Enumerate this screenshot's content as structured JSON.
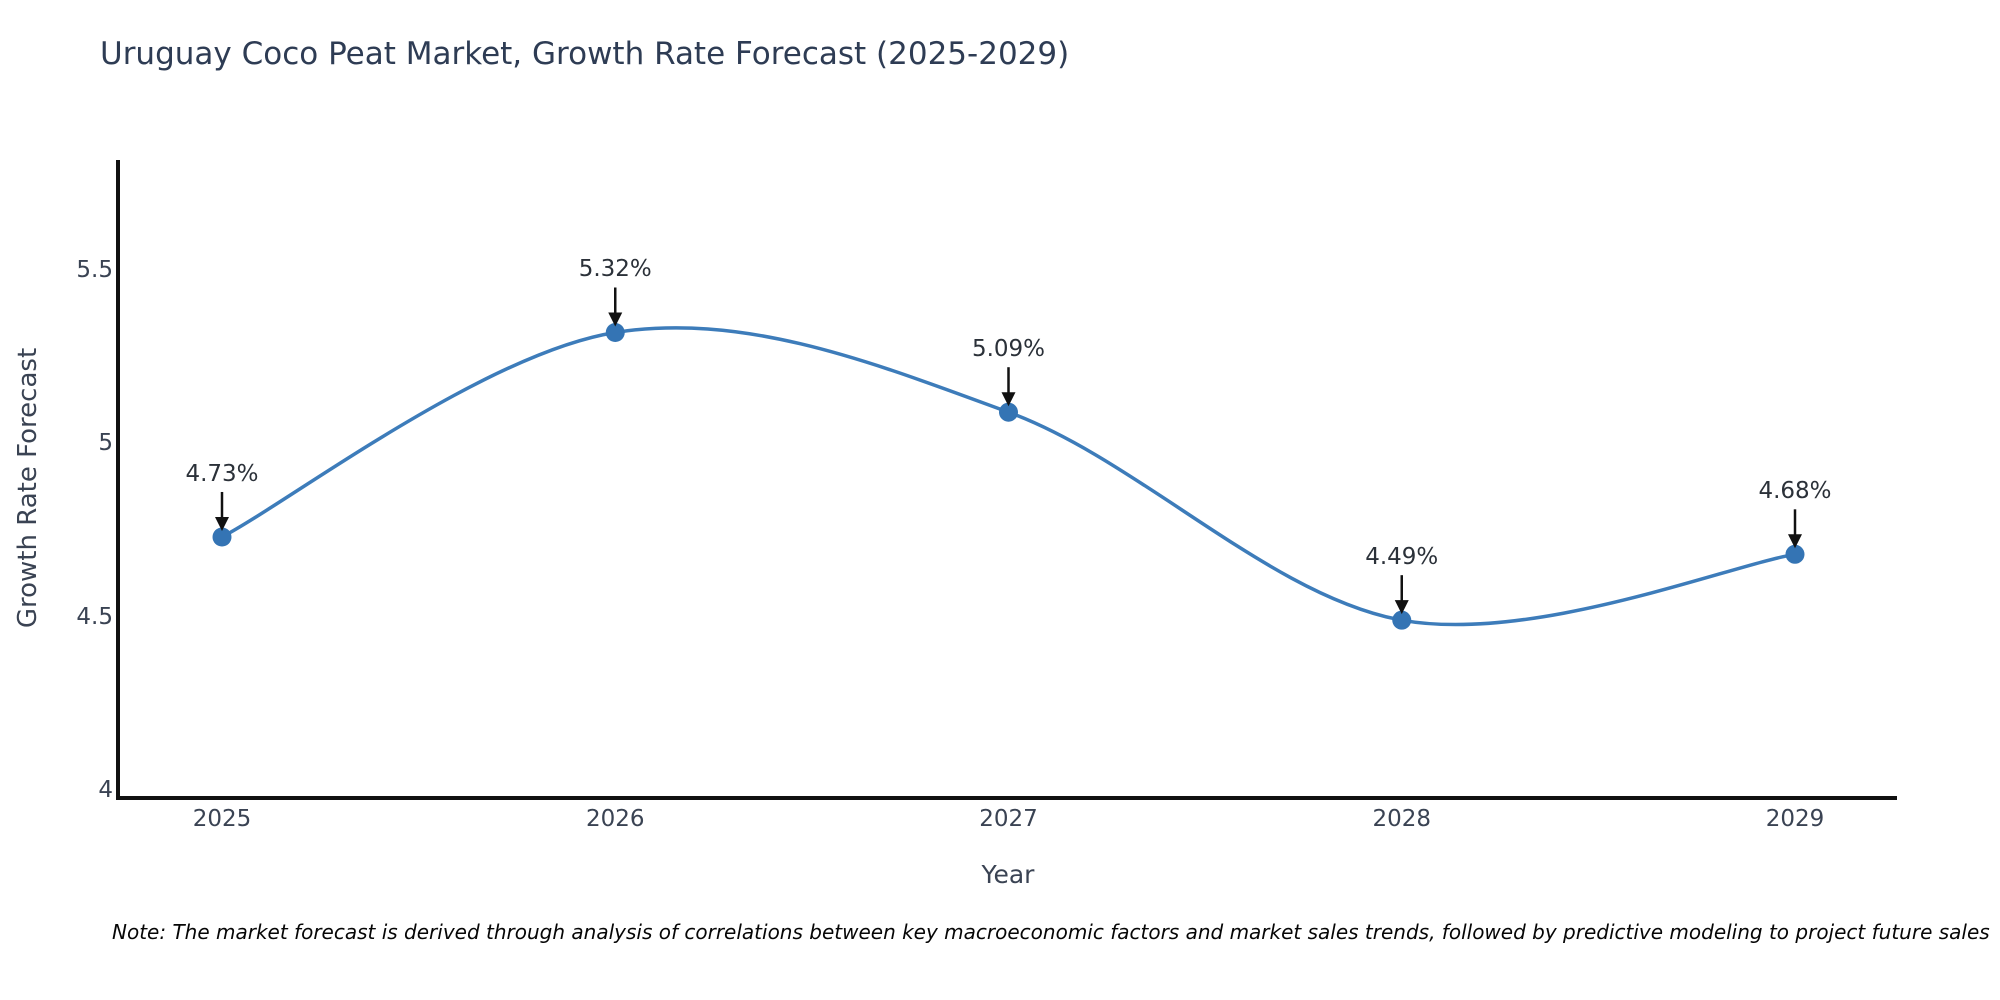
{
  "title": "Uruguay Coco Peat Market, Growth Rate Forecast (2025-2029)",
  "note": "Note: The market forecast is derived through analysis of correlations between key macroeconomic factors and market sales trends, followed by predictive modeling to project future sales",
  "chart_data": {
    "type": "line",
    "title": "Uruguay Coco Peat Market, Growth Rate Forecast (2025-2029)",
    "xlabel": "Year",
    "ylabel": "Growth Rate Forecast",
    "categories": [
      "2025",
      "2026",
      "2027",
      "2028",
      "2029"
    ],
    "values": [
      4.73,
      5.32,
      5.09,
      4.49,
      4.68
    ],
    "point_labels": [
      "4.73%",
      "5.32%",
      "5.09%",
      "4.49%",
      "4.68%"
    ],
    "y_ticks": [
      4,
      4.5,
      5,
      5.5
    ],
    "y_tick_labels": [
      "4",
      "4.5",
      "5",
      "5.5"
    ],
    "ylim": [
      3.98,
      5.82
    ],
    "line_shape": "spline",
    "markers": true,
    "grid": false,
    "legend": "none",
    "annotation_arrows": true,
    "colors": {
      "line": "#3d7cba",
      "marker": "#3474b4",
      "axis": "#111111",
      "arrow": "#111111",
      "title_text": "#2e3c54",
      "tick_text": "#3a4353",
      "label_text": "#2b3139",
      "background": "#ffffff"
    }
  }
}
